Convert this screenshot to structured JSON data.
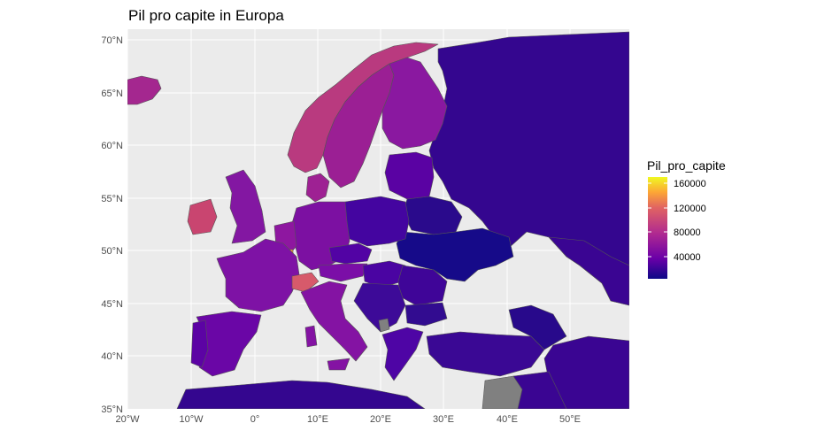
{
  "title": "Pil pro capite in Europa",
  "axes": {
    "x_ticks": [
      "20°W",
      "10°W",
      "0°",
      "10°E",
      "20°E",
      "30°E",
      "40°E",
      "50°E"
    ],
    "y_ticks": [
      "70°N",
      "65°N",
      "60°N",
      "55°N",
      "50°N",
      "45°N",
      "40°N",
      "35°N"
    ]
  },
  "legend": {
    "title": "Pil_pro_capite",
    "labels": [
      "160000",
      "120000",
      "80000",
      "40000"
    ],
    "colors": [
      "#f0f921",
      "#fca636",
      "#e16462",
      "#b12a90",
      "#6a00a8",
      "#0d0887"
    ]
  },
  "colors": {
    "panel_bg": "#ebebeb",
    "grid": "#ffffff",
    "border": "#555555",
    "no_data": "#808080"
  }
}
